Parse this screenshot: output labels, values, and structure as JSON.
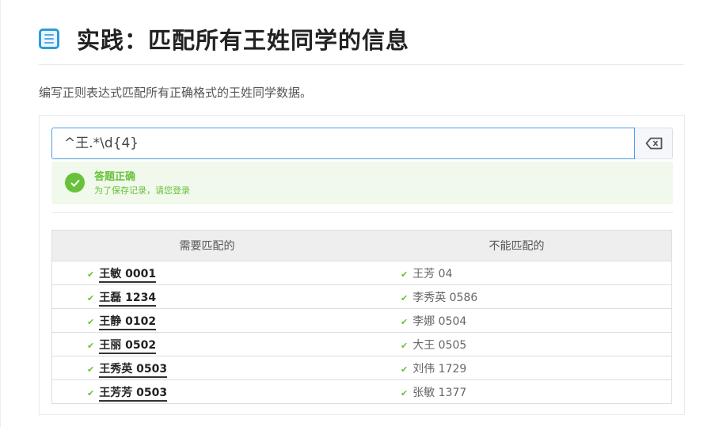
{
  "header": {
    "title": "实践：匹配所有王姓同学的信息",
    "icon": "document-list-icon"
  },
  "description": "编写正则表达式匹配所有正确格式的王姓同学数据。",
  "editor": {
    "value": "^王.*\\d{4}",
    "clear_icon": "backspace-clear-icon"
  },
  "result": {
    "title": "答题正确",
    "subtitle": "为了保存记录，请您登录",
    "color": "#67c23a"
  },
  "table": {
    "headers": [
      "需要匹配的",
      "不能匹配的"
    ],
    "rows": [
      {
        "match": "王敏 0001",
        "nomatch": "王芳 04"
      },
      {
        "match": "王磊 1234",
        "nomatch": "李秀英 0586"
      },
      {
        "match": "王静 0102",
        "nomatch": "李娜 0504"
      },
      {
        "match": "王丽 0502",
        "nomatch": "大王 0505"
      },
      {
        "match": "王秀英 0503",
        "nomatch": "刘伟 1729"
      },
      {
        "match": "王芳芳 0503",
        "nomatch": "张敏 1377"
      }
    ]
  }
}
